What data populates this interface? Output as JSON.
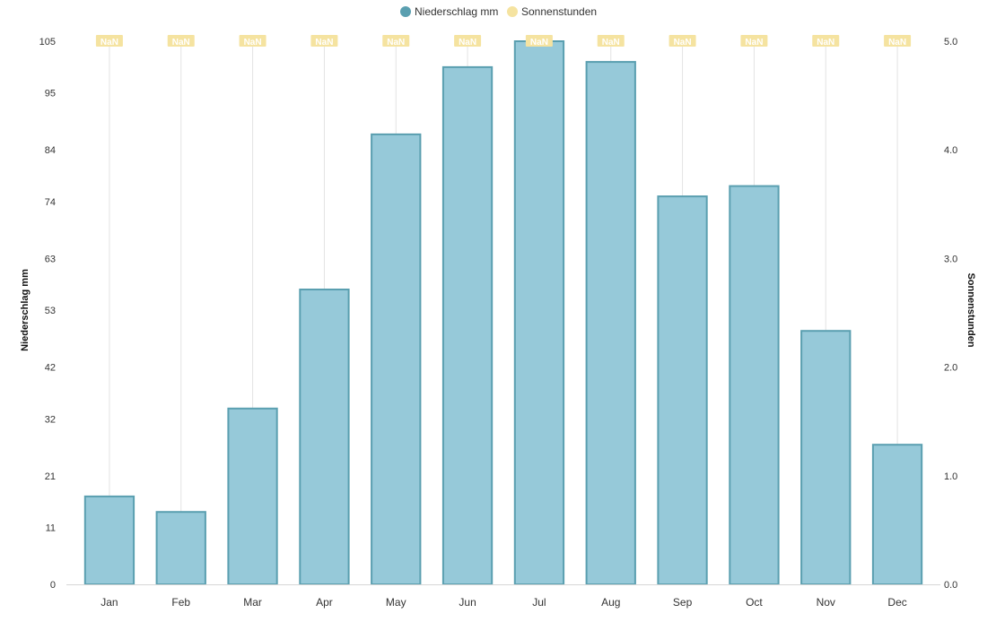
{
  "chart_data": {
    "type": "bar",
    "categories": [
      "Jan",
      "Feb",
      "Mar",
      "Apr",
      "May",
      "Jun",
      "Jul",
      "Aug",
      "Sep",
      "Oct",
      "Nov",
      "Dec"
    ],
    "series": [
      {
        "name": "Niederschlag mm",
        "axis": "left",
        "type": "bar",
        "color": "#96c9d9",
        "border_color": "#5a9fb0",
        "values": [
          17,
          14,
          34,
          57,
          87,
          100,
          105,
          101,
          75,
          77,
          49,
          27
        ]
      },
      {
        "name": "Sonnenstunden",
        "axis": "right",
        "type": "line",
        "color": "#f5e3a0",
        "values": [
          null,
          null,
          null,
          null,
          null,
          null,
          null,
          null,
          null,
          null,
          null,
          null
        ],
        "data_labels": [
          "NaN",
          "NaN",
          "NaN",
          "NaN",
          "NaN",
          "NaN",
          "NaN",
          "NaN",
          "NaN",
          "NaN",
          "NaN",
          "NaN"
        ]
      }
    ],
    "ylabel_left": "Niederschlag mm",
    "ylabel_right": "Sonnenstunden",
    "yticks_left": [
      "0",
      "11",
      "21",
      "32",
      "42",
      "53",
      "63",
      "74",
      "84",
      "95",
      "105"
    ],
    "yticks_right": [
      "0.0",
      "1.0",
      "2.0",
      "3.0",
      "4.0",
      "5.0"
    ],
    "ylim_left": [
      0,
      105
    ],
    "ylim_right": [
      0,
      5
    ],
    "grid": "vertical",
    "legend_position": "top-center"
  }
}
